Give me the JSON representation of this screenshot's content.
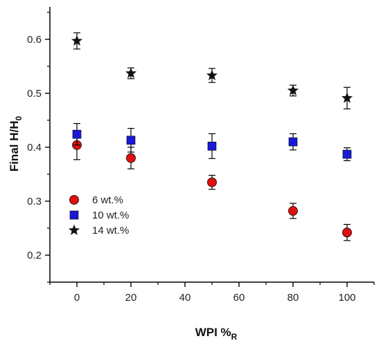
{
  "chart_data": {
    "type": "scatter",
    "xlabel": "WPI %",
    "xlabel_subscript": "R",
    "ylabel": "Final H/H",
    "ylabel_subscript": "0",
    "xlim": [
      -10,
      110
    ],
    "ylim": [
      0.15,
      0.66
    ],
    "x_ticks": [
      0,
      20,
      40,
      60,
      80,
      100
    ],
    "y_ticks": [
      0.2,
      0.3,
      0.4,
      0.5,
      0.6
    ],
    "legend_position": "lower-left",
    "series": [
      {
        "name": "6 wt.%",
        "marker": "circle",
        "color": "#e01010",
        "x": [
          0,
          20,
          50,
          80,
          100
        ],
        "y": [
          0.404,
          0.38,
          0.335,
          0.282,
          0.242
        ],
        "err": [
          0.027,
          0.02,
          0.013,
          0.014,
          0.015
        ]
      },
      {
        "name": "10 wt.%",
        "marker": "square",
        "color": "#1a1ad6",
        "x": [
          0,
          20,
          50,
          80,
          100
        ],
        "y": [
          0.424,
          0.413,
          0.402,
          0.41,
          0.387
        ],
        "err": [
          0.02,
          0.022,
          0.023,
          0.015,
          0.012
        ]
      },
      {
        "name": "14 wt.%",
        "marker": "star",
        "color": "#111111",
        "x": [
          0,
          20,
          50,
          80,
          100
        ],
        "y": [
          0.597,
          0.537,
          0.533,
          0.505,
          0.491
        ],
        "err": [
          0.015,
          0.01,
          0.013,
          0.01,
          0.02
        ]
      }
    ]
  }
}
